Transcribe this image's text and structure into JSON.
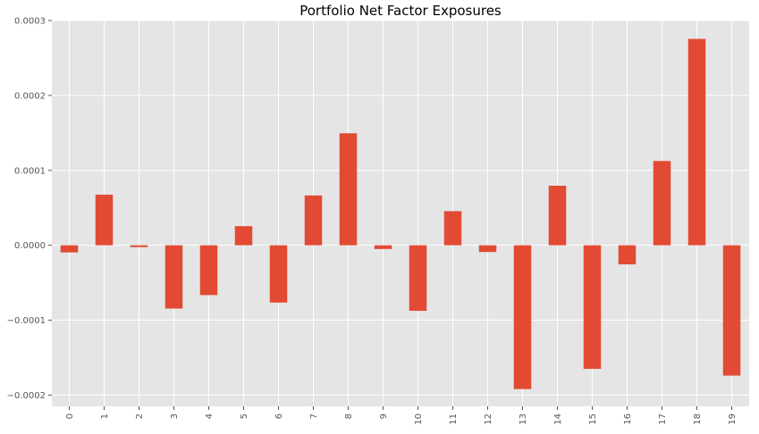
{
  "chart_data": {
    "type": "bar",
    "title": "Portfolio Net Factor Exposures",
    "xlabel": "",
    "ylabel": "",
    "categories": [
      "0",
      "1",
      "2",
      "3",
      "4",
      "5",
      "6",
      "7",
      "8",
      "9",
      "10",
      "11",
      "12",
      "13",
      "14",
      "15",
      "16",
      "17",
      "18",
      "19"
    ],
    "values": [
      -9.5e-06,
      6.75e-05,
      -2.5e-06,
      -8.45e-05,
      -6.65e-05,
      2.55e-05,
      -7.65e-05,
      6.65e-05,
      0.0001495,
      -5e-06,
      -8.75e-05,
      4.55e-05,
      -9e-06,
      -0.000192,
      7.95e-05,
      -0.000165,
      -2.55e-05,
      0.0001125,
      0.0002755,
      -0.000174
    ],
    "ylim": [
      -0.000215,
      0.0003
    ],
    "yticks": [
      -0.0002,
      -0.0001,
      0.0,
      0.0001,
      0.0002,
      0.0003
    ],
    "ytick_labels": [
      "−0.0002",
      "−0.0001",
      "0.0000",
      "0.0001",
      "0.0002",
      "0.0003"
    ],
    "grid": true,
    "legend": "none",
    "colors": {
      "bar": "#E24A33",
      "background": "#E5E5E5",
      "grid": "#FFFFFF"
    }
  }
}
